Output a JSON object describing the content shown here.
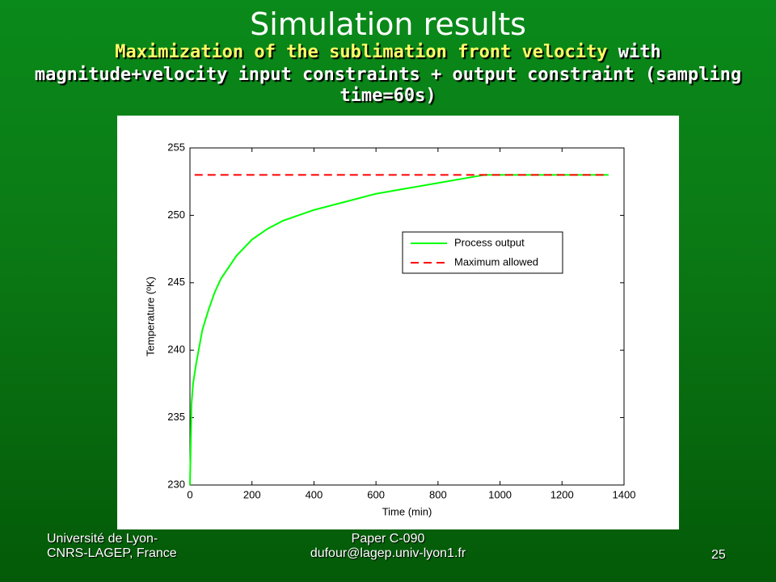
{
  "slide": {
    "title": "Simulation results",
    "subtitle_highlight": "Maximization of the sublimation front velocity",
    "subtitle_line1_rest": "with",
    "subtitle_line2": "magnitude+velocity input constraints + output constraint (sampling",
    "subtitle_line3": "time=60s)",
    "footer_left": [
      "Université de Lyon-",
      "CNRS-LAGEP, France"
    ],
    "footer_center": [
      "Paper C-090",
      "dufour@lagep.univ-lyon1.fr"
    ],
    "page_number": "25"
  },
  "chart_data": {
    "type": "line",
    "x_label": "Time (min)",
    "y_label": "Temperature (ºK)",
    "xlim": [
      0,
      1400
    ],
    "xticks": [
      0,
      200,
      400,
      600,
      800,
      1000,
      1200,
      1400
    ],
    "ylim": [
      230,
      255
    ],
    "yticks": [
      230,
      235,
      240,
      245,
      250,
      255
    ],
    "legend": "upper right",
    "series": [
      {
        "name": "Process output",
        "color": "#00ff00",
        "style": "solid",
        "x": [
          0,
          5,
          10,
          20,
          40,
          60,
          80,
          100,
          150,
          200,
          250,
          300,
          400,
          500,
          600,
          700,
          800,
          900,
          950,
          1000,
          1100,
          1200,
          1300,
          1350
        ],
        "values": [
          230,
          236,
          237.5,
          239,
          241.5,
          243,
          244.3,
          245.3,
          247,
          248.2,
          249,
          249.6,
          250.4,
          251,
          251.6,
          252,
          252.4,
          252.8,
          253,
          253,
          253,
          253,
          253,
          253
        ]
      },
      {
        "name": "Maximum allowed",
        "color": "#ff0000",
        "style": "dashed",
        "x": [
          15,
          1350
        ],
        "values": [
          253,
          253
        ]
      }
    ]
  }
}
